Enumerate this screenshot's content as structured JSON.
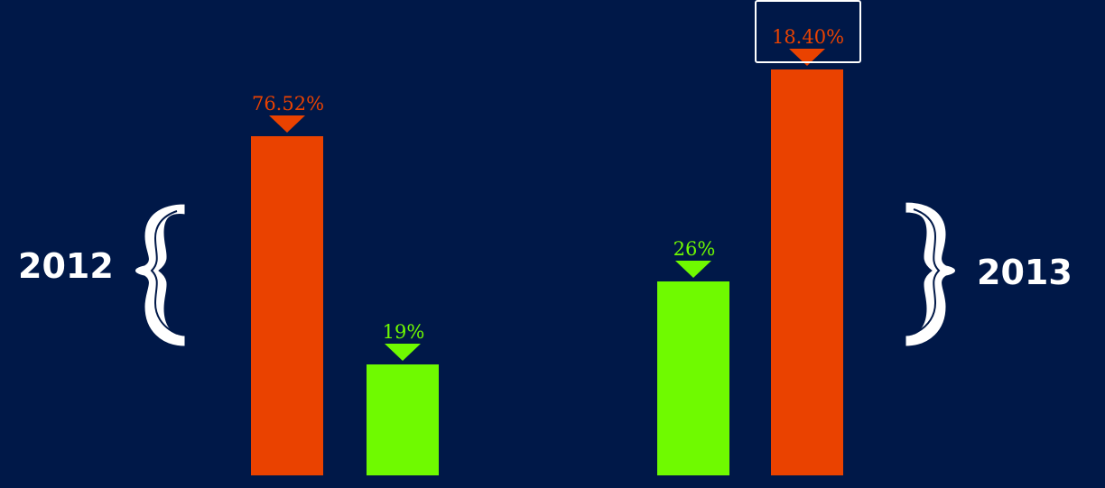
{
  "colors": {
    "background": "#001848",
    "orange": "#ea4200",
    "green": "#6ffa00",
    "white": "#ffffff"
  },
  "chart_data": {
    "type": "bar",
    "title": "",
    "xlabel": "",
    "ylabel": "",
    "ylim": [
      0,
      100
    ],
    "grid": false,
    "legend": "none",
    "groups": [
      {
        "label": "2012",
        "bars": [
          {
            "value": 76.52,
            "label": "76.52%",
            "color": "#ea4200"
          },
          {
            "value": 19,
            "label": "19%",
            "color": "#6ffa00"
          }
        ]
      },
      {
        "label": "2013",
        "bars": [
          {
            "value": 26,
            "label": "26%",
            "color": "#6ffa00"
          },
          {
            "value": 18.4,
            "label": "18.40%",
            "color": "#ea4200",
            "highlighted": true
          }
        ]
      }
    ]
  }
}
